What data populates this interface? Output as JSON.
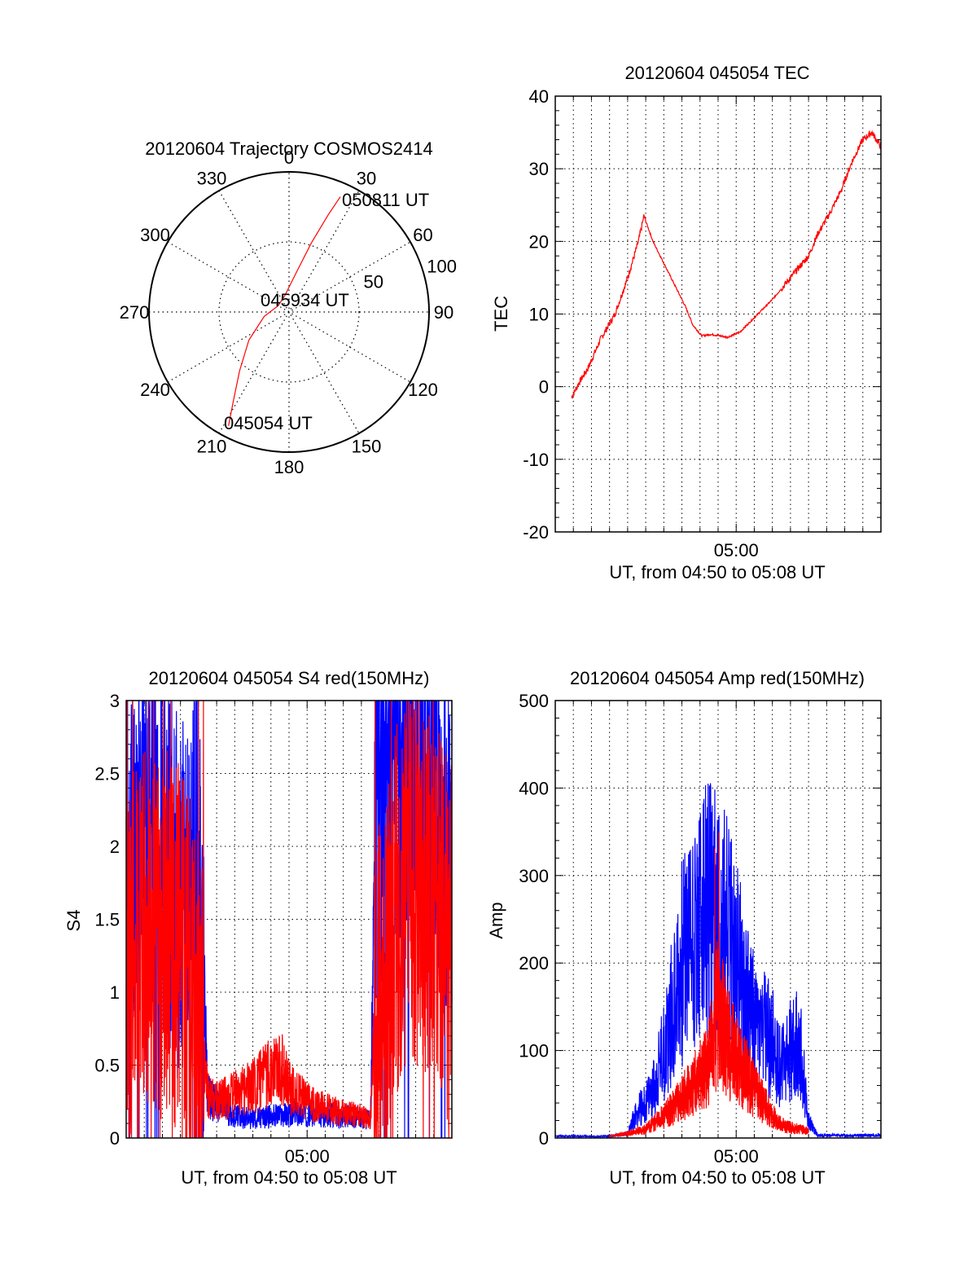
{
  "chart_data": [
    {
      "id": "polar",
      "type": "scatter",
      "title": "20120604 Trajectory COSMOS2414",
      "azimuth_labels": [
        "0",
        "30",
        "60",
        "90",
        "120",
        "150",
        "180",
        "210",
        "240",
        "270",
        "300",
        "330"
      ],
      "radial_labels": [
        "50",
        "100"
      ],
      "series_color": "#ff0000",
      "trajectory": [
        {
          "azimuth": 208,
          "radius": 92
        },
        {
          "azimuth": 212,
          "radius": 75
        },
        {
          "azimuth": 220,
          "radius": 55
        },
        {
          "azimuth": 235,
          "radius": 35
        },
        {
          "azimuth": 260,
          "radius": 18
        },
        {
          "azimuth": 300,
          "radius": 9
        },
        {
          "azimuth": 345,
          "radius": 12
        },
        {
          "azimuth": 10,
          "radius": 28
        },
        {
          "azimuth": 18,
          "radius": 52
        },
        {
          "azimuth": 22,
          "radius": 75
        },
        {
          "azimuth": 24,
          "radius": 90
        }
      ],
      "annotations": {
        "start": "045054 UT",
        "middle": "045934 UT",
        "end": "050811 UT"
      }
    },
    {
      "id": "tec",
      "type": "line",
      "title": "20120604 045054 TEC",
      "ylabel": "TEC",
      "xlabel": "UT, from 04:50 to 05:08 UT",
      "ylim": [
        -20,
        40
      ],
      "yticks": [
        "-20",
        "-10",
        "0",
        "10",
        "20",
        "30",
        "40"
      ],
      "xlim": [
        0,
        18
      ],
      "xtick_label": "05:00",
      "xtick_at": 10,
      "series_color": "#ff0000",
      "points": [
        [
          0.9,
          -1.5
        ],
        [
          1.3,
          0.5
        ],
        [
          1.8,
          2.5
        ],
        [
          2.5,
          6.5
        ],
        [
          3.3,
          10
        ],
        [
          4.0,
          15
        ],
        [
          4.6,
          20
        ],
        [
          4.9,
          23.5
        ],
        [
          5.4,
          20
        ],
        [
          6.0,
          17
        ],
        [
          6.6,
          14
        ],
        [
          7.2,
          11
        ],
        [
          7.6,
          8.5
        ],
        [
          8.1,
          7
        ],
        [
          8.6,
          7.2
        ],
        [
          9.1,
          7.0
        ],
        [
          9.5,
          6.8
        ],
        [
          10.2,
          7.5
        ],
        [
          11,
          9.5
        ],
        [
          12,
          12
        ],
        [
          13,
          15
        ],
        [
          14,
          18
        ],
        [
          14.5,
          21
        ],
        [
          15.2,
          24
        ],
        [
          15.8,
          27
        ],
        [
          16.4,
          31
        ],
        [
          17.0,
          34
        ],
        [
          17.5,
          35
        ],
        [
          18,
          33
        ]
      ]
    },
    {
      "id": "s4",
      "type": "line",
      "title": "20120604 045054 S4 red(150MHz)",
      "ylabel": "S4",
      "xlabel": "UT, from 04:50 to 05:08 UT",
      "ylim": [
        0,
        3
      ],
      "yticks": [
        "0",
        "0.5",
        "1",
        "1.5",
        "2",
        "2.5",
        "3"
      ],
      "xlim": [
        0,
        18
      ],
      "xtick_label": "05:00",
      "xtick_at": 10,
      "series": [
        {
          "color": "#0000ff",
          "points": [
            [
              0,
              1.8
            ],
            [
              1,
              2.4
            ],
            [
              2,
              2.0
            ],
            [
              3,
              1.6
            ],
            [
              4,
              1.9
            ],
            [
              4.5,
              0.3
            ],
            [
              5,
              0.22
            ],
            [
              6,
              0.15
            ],
            [
              7,
              0.13
            ],
            [
              8,
              0.15
            ],
            [
              9,
              0.16
            ],
            [
              10,
              0.17
            ],
            [
              11,
              0.16
            ],
            [
              12,
              0.15
            ],
            [
              13,
              0.14
            ],
            [
              13.5,
              0.12
            ],
            [
              13.8,
              2.2
            ],
            [
              14.5,
              2.5
            ],
            [
              15,
              2.6
            ],
            [
              16,
              2.4
            ],
            [
              17,
              2.5
            ],
            [
              18,
              1.8
            ]
          ]
        },
        {
          "color": "#ff0000",
          "points": [
            [
              0,
              1.2
            ],
            [
              1,
              1.5
            ],
            [
              2,
              1.4
            ],
            [
              3,
              1.3
            ],
            [
              4,
              0.8
            ],
            [
              4.5,
              0.3
            ],
            [
              5,
              0.25
            ],
            [
              6,
              0.3
            ],
            [
              7,
              0.35
            ],
            [
              8,
              0.45
            ],
            [
              8.5,
              0.5
            ],
            [
              9,
              0.35
            ],
            [
              10,
              0.25
            ],
            [
              11,
              0.2
            ],
            [
              12,
              0.18
            ],
            [
              13,
              0.15
            ],
            [
              13.5,
              0.12
            ],
            [
              13.8,
              0.9
            ],
            [
              14.5,
              1.2
            ],
            [
              15,
              1.6
            ],
            [
              16,
              1.8
            ],
            [
              17,
              1.6
            ],
            [
              18,
              1.3
            ]
          ]
        }
      ]
    },
    {
      "id": "amp",
      "type": "line",
      "title": "20120604 045054 Amp red(150MHz)",
      "ylabel": "Amp",
      "xlabel": "UT, from 04:50 to 05:08 UT",
      "ylim": [
        0,
        500
      ],
      "yticks": [
        "0",
        "100",
        "200",
        "300",
        "400",
        "500"
      ],
      "xlim": [
        0,
        18
      ],
      "xtick_label": "05:00",
      "xtick_at": 10,
      "series": [
        {
          "color": "#0000ff",
          "points": [
            [
              0,
              2
            ],
            [
              3,
              2
            ],
            [
              4,
              5
            ],
            [
              4.5,
              30
            ],
            [
              5,
              40
            ],
            [
              5.5,
              60
            ],
            [
              6,
              100
            ],
            [
              6.5,
              150
            ],
            [
              7,
              200
            ],
            [
              7.5,
              230
            ],
            [
              8,
              240
            ],
            [
              8.5,
              260
            ],
            [
              9,
              250
            ],
            [
              9.5,
              230
            ],
            [
              10,
              200
            ],
            [
              10.5,
              170
            ],
            [
              11,
              130
            ],
            [
              11.5,
              120
            ],
            [
              12,
              110
            ],
            [
              12.5,
              80
            ],
            [
              13,
              100
            ],
            [
              13.5,
              110
            ],
            [
              14,
              20
            ],
            [
              14.5,
              3
            ],
            [
              18,
              3
            ]
          ]
        },
        {
          "color": "#ff0000",
          "points": [
            [
              3,
              2
            ],
            [
              4,
              5
            ],
            [
              5,
              10
            ],
            [
              6,
              25
            ],
            [
              7,
              45
            ],
            [
              8,
              70
            ],
            [
              8.5,
              90
            ],
            [
              8.8,
              120
            ],
            [
              9,
              150
            ],
            [
              9.5,
              110
            ],
            [
              10,
              90
            ],
            [
              10.5,
              75
            ],
            [
              11,
              55
            ],
            [
              11.5,
              40
            ],
            [
              12,
              25
            ],
            [
              12.5,
              15
            ],
            [
              13,
              12
            ],
            [
              13.5,
              10
            ],
            [
              14,
              8
            ]
          ]
        }
      ]
    }
  ]
}
